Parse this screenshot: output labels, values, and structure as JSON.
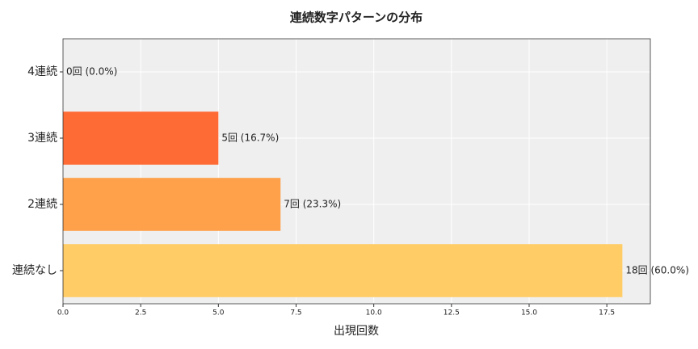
{
  "chart_data": {
    "type": "barh",
    "title": "連続数字パターンの分布",
    "xlabel": "出現回数",
    "categories": [
      "4連続",
      "3連続",
      "2連続",
      "連続なし"
    ],
    "values": [
      0,
      5,
      7,
      18
    ],
    "value_labels": [
      "0回 (0.0%)",
      "5回 (16.7%)",
      "7回 (23.3%)",
      "18回 (60.0%)"
    ],
    "colors": [
      "#ff4136",
      "#ff6b35",
      "#ffa04a",
      "#ffcc66"
    ],
    "xlim": [
      0,
      18.9
    ],
    "xticks": [
      {
        "value": 0,
        "label": "0.0"
      },
      2.5,
      {
        "value": 5,
        "label": "5.0"
      },
      7.5,
      {
        "value": 10,
        "label": "10.0"
      },
      12.5,
      {
        "value": 15,
        "label": "15.0"
      },
      17.5
    ],
    "grid": true
  }
}
